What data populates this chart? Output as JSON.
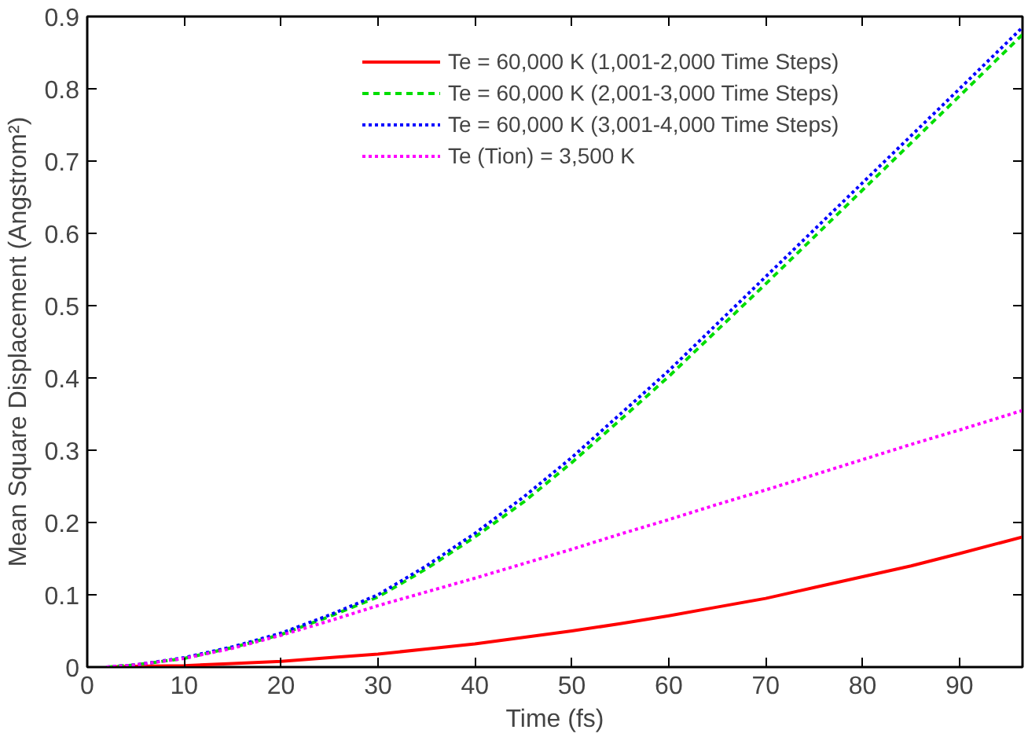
{
  "chart_data": {
    "type": "line",
    "xlabel": "Time (fs)",
    "ylabel": "Mean Square Displacement (Angstrom²)",
    "x": [
      2,
      5,
      10,
      15,
      20,
      25,
      30,
      35,
      40,
      45,
      50,
      55,
      60,
      65,
      70,
      75,
      80,
      85,
      90,
      96.5
    ],
    "xlim": [
      0,
      96.5
    ],
    "ylim": [
      0,
      0.9
    ],
    "xticks": [
      0,
      10,
      20,
      30,
      40,
      50,
      60,
      70,
      80,
      90
    ],
    "yticks": [
      0,
      0.1,
      0.2,
      0.3,
      0.4,
      0.5,
      0.6,
      0.7,
      0.8,
      0.9
    ],
    "grid": false,
    "legend": "top right",
    "marker": "none",
    "series": [
      {
        "name": "Te = 60,000 K (1,001-2,000 Time Steps)",
        "color": "#ff0000",
        "line_style": "solid",
        "values": [
          0,
          0.001,
          0.002,
          0.005,
          0.008,
          0.013,
          0.018,
          0.025,
          0.032,
          0.041,
          0.05,
          0.06,
          0.071,
          0.083,
          0.095,
          0.11,
          0.125,
          0.14,
          0.157,
          0.18
        ]
      },
      {
        "name": "Te = 60,000 K (2,001-3,000 Time Steps)",
        "color": "#00dd00",
        "line_style": "dashed",
        "values": [
          0,
          0.003,
          0.012,
          0.027,
          0.045,
          0.07,
          0.097,
          0.136,
          0.18,
          0.228,
          0.283,
          0.342,
          0.402,
          0.466,
          0.53,
          0.595,
          0.66,
          0.725,
          0.79,
          0.875
        ]
      },
      {
        "name": "Te = 60,000 K (3,001-4,000 Time Steps)",
        "color": "#0000ff",
        "line_style": "dotted",
        "values": [
          0,
          0.003,
          0.013,
          0.028,
          0.047,
          0.072,
          0.1,
          0.14,
          0.185,
          0.235,
          0.29,
          0.35,
          0.41,
          0.475,
          0.54,
          0.605,
          0.67,
          0.735,
          0.8,
          0.885
        ]
      },
      {
        "name": "Te (Tion) = 3,500 K",
        "color": "#ff00ff",
        "line_style": "dotted",
        "values": [
          0,
          0.003,
          0.012,
          0.026,
          0.044,
          0.064,
          0.085,
          0.104,
          0.123,
          0.143,
          0.163,
          0.184,
          0.204,
          0.225,
          0.245,
          0.266,
          0.287,
          0.308,
          0.328,
          0.355
        ]
      }
    ]
  }
}
